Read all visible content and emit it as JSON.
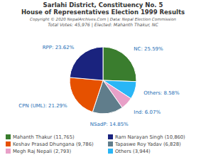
{
  "chart_data": {
    "type": "pie",
    "title": "Sarlahi District, Constituency No. 5",
    "subtitle": "House of Representatives Election 1999 Results",
    "annotations": [
      "Copyright © 2020 NepalArchives.Com | Data: Nepal Election Commission",
      "Total Votes: 45,976 | Elected: Mahanth Thakur, NC"
    ],
    "categories": [
      "NC",
      "Others",
      "Ind",
      "NSadP",
      "CPN (UML)",
      "RPP"
    ],
    "values": [
      25.59,
      8.58,
      6.07,
      14.85,
      21.29,
      23.62
    ],
    "colors": [
      "#3a7d2e",
      "#29b6f6",
      "#e8a0c8",
      "#607d8b",
      "#e65100",
      "#1a237e"
    ],
    "data_labels": true,
    "value_labels": [
      "NC: 25.59%",
      "Others: 8.58%",
      "Ind: 6.07%",
      "NSadP: 14.85%",
      "CPN (UML): 21.29%",
      "RPP: 23.62%"
    ],
    "legend": "bottom",
    "legend_labels": [
      "Mahanth Thakur (11,765)",
      "Ram Narayan Singh (10,860)",
      "Keshav Prasad Dhungana (9,786)",
      "Tapaswe Roy Yadav (6,828)",
      "Megh Raj Nepali (2,793)",
      "Others (3,944)"
    ],
    "legend_colors": [
      "#3a7d2e",
      "#1a237e",
      "#e65100",
      "#607d8b",
      "#e8a0c8",
      "#29b6f6"
    ]
  }
}
